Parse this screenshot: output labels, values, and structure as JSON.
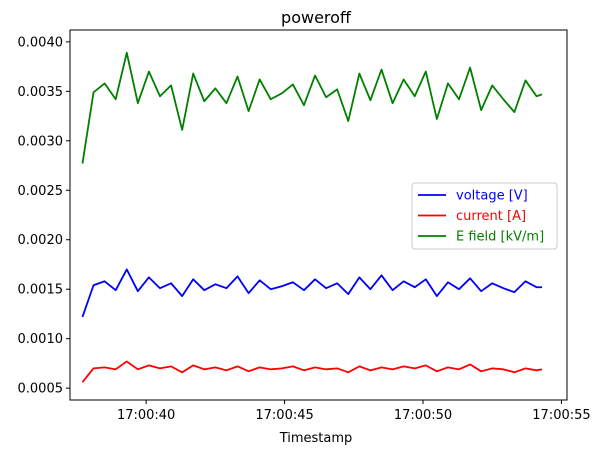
{
  "chart_data": {
    "type": "line",
    "title": "poweroff",
    "xlabel": "Timestamp",
    "ylabel": "",
    "x_unit": "seconds after 17:00:00",
    "xlim": [
      37.25,
      55.2
    ],
    "ylim": [
      0.00038,
      0.00412
    ],
    "xticks": [
      {
        "value": 40,
        "label": "17:00:40"
      },
      {
        "value": 45,
        "label": "17:00:45"
      },
      {
        "value": 50,
        "label": "17:00:50"
      },
      {
        "value": 55,
        "label": "17:00:55"
      }
    ],
    "yticks": [
      {
        "value": 0.0005,
        "label": "0.0005"
      },
      {
        "value": 0.001,
        "label": "0.0010"
      },
      {
        "value": 0.0015,
        "label": "0.0015"
      },
      {
        "value": 0.002,
        "label": "0.0020"
      },
      {
        "value": 0.0025,
        "label": "0.0025"
      },
      {
        "value": 0.003,
        "label": "0.0030"
      },
      {
        "value": 0.0035,
        "label": "0.0035"
      },
      {
        "value": 0.004,
        "label": "0.0040"
      }
    ],
    "grid": false,
    "legend_position": "center-right",
    "x": [
      37.7,
      38.1,
      38.5,
      38.9,
      39.3,
      39.7,
      40.1,
      40.5,
      40.9,
      41.3,
      41.7,
      42.1,
      42.5,
      42.9,
      43.3,
      43.7,
      44.1,
      44.5,
      44.9,
      45.3,
      45.7,
      46.1,
      46.5,
      46.9,
      47.3,
      47.7,
      48.1,
      48.5,
      48.9,
      49.3,
      49.7,
      50.1,
      50.5,
      50.9,
      51.3,
      51.7,
      52.1,
      52.5,
      52.9,
      53.3,
      53.7,
      54.1,
      54.3
    ],
    "series": [
      {
        "name": "voltage [V]",
        "color": "#0000ff",
        "values": [
          0.00122,
          0.00154,
          0.00158,
          0.00149,
          0.0017,
          0.00148,
          0.00162,
          0.00151,
          0.00156,
          0.00143,
          0.0016,
          0.00149,
          0.00155,
          0.00151,
          0.00163,
          0.00146,
          0.00159,
          0.0015,
          0.00153,
          0.00157,
          0.00149,
          0.0016,
          0.00151,
          0.00156,
          0.00145,
          0.00162,
          0.0015,
          0.00164,
          0.00149,
          0.00158,
          0.00152,
          0.0016,
          0.00143,
          0.00157,
          0.0015,
          0.00161,
          0.00148,
          0.00156,
          0.00151,
          0.00147,
          0.00158,
          0.00152,
          0.00152
        ]
      },
      {
        "name": "current [A]",
        "color": "#ff0000",
        "values": [
          0.00056,
          0.0007,
          0.00071,
          0.00069,
          0.00077,
          0.00069,
          0.00073,
          0.0007,
          0.00072,
          0.00066,
          0.00073,
          0.00069,
          0.00071,
          0.00068,
          0.00072,
          0.00067,
          0.00071,
          0.00069,
          0.0007,
          0.00072,
          0.00068,
          0.00071,
          0.00069,
          0.0007,
          0.00066,
          0.00072,
          0.00068,
          0.00071,
          0.00069,
          0.00072,
          0.0007,
          0.00073,
          0.00067,
          0.00071,
          0.00069,
          0.00074,
          0.00067,
          0.0007,
          0.00069,
          0.00066,
          0.0007,
          0.00068,
          0.00069
        ]
      },
      {
        "name": "E field [kV/m]",
        "color": "#008000",
        "values": [
          0.00277,
          0.00349,
          0.00358,
          0.00342,
          0.00389,
          0.00338,
          0.0037,
          0.00345,
          0.00356,
          0.00311,
          0.00368,
          0.0034,
          0.00353,
          0.00338,
          0.00365,
          0.0033,
          0.00362,
          0.00342,
          0.00348,
          0.00357,
          0.00336,
          0.00366,
          0.00344,
          0.00352,
          0.0032,
          0.00368,
          0.00341,
          0.00372,
          0.00338,
          0.00362,
          0.00345,
          0.0037,
          0.00322,
          0.00358,
          0.00342,
          0.00374,
          0.00331,
          0.00356,
          0.00342,
          0.00329,
          0.00361,
          0.00345,
          0.00347
        ]
      }
    ]
  }
}
